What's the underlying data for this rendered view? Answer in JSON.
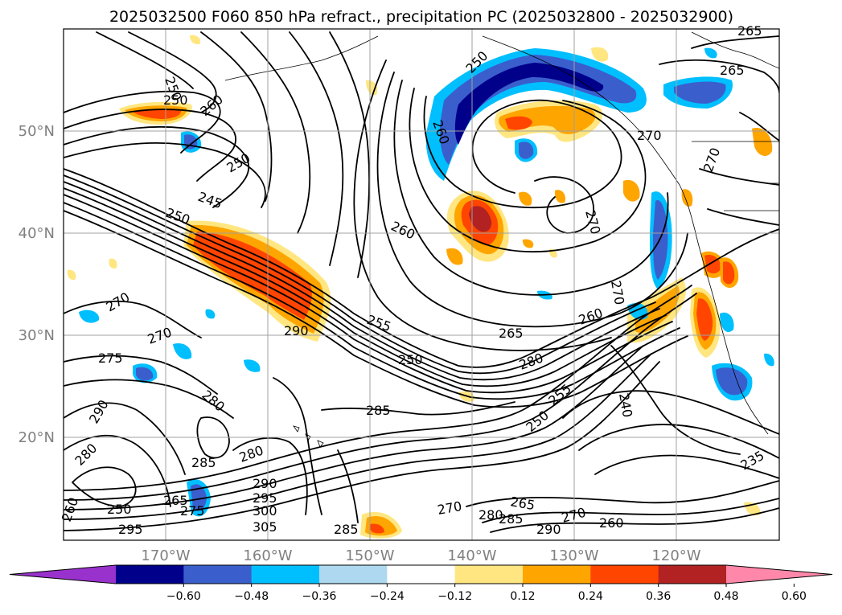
{
  "figure": {
    "title": "2025032500 F060 850 hPa refract., precipitation PC (2025032800 - 2025032900)"
  },
  "map": {
    "lat_labels": [
      "50°N",
      "40°N",
      "30°N",
      "20°N"
    ],
    "lon_labels": [
      "170°W",
      "160°W",
      "150°W",
      "140°W",
      "130°W",
      "120°W"
    ],
    "contour_labels": [
      "265",
      "265",
      "250",
      "250",
      "250",
      "260",
      "260",
      "270",
      "250",
      "245",
      "250",
      "260",
      "270",
      "270",
      "270",
      "270",
      "255",
      "265",
      "260",
      "270",
      "275",
      "290",
      "250",
      "280",
      "255",
      "250",
      "240",
      "280",
      "285",
      "290",
      "280",
      "285",
      "280",
      "290",
      "295",
      "300",
      "305",
      "265",
      "275",
      "260",
      "250",
      "295",
      "285",
      "270",
      "280",
      "265",
      "285",
      "290",
      "270",
      "260",
      "235"
    ],
    "colors": {
      "land_outline": "#000000",
      "grid": "#a0a0a0",
      "contour": "#000000"
    }
  },
  "colorbar": {
    "ticks": [
      "−0.60",
      "−0.48",
      "−0.36",
      "−0.24",
      "−0.12",
      "0.12",
      "0.24",
      "0.36",
      "0.48",
      "0.60"
    ],
    "colors": [
      "#9932cc",
      "#00008b",
      "#3a5fcd",
      "#00bfff",
      "#add8f0",
      "#ffffff",
      "#ffe680",
      "#ffa500",
      "#ff4500",
      "#b22222",
      "#ff88aa"
    ]
  }
}
